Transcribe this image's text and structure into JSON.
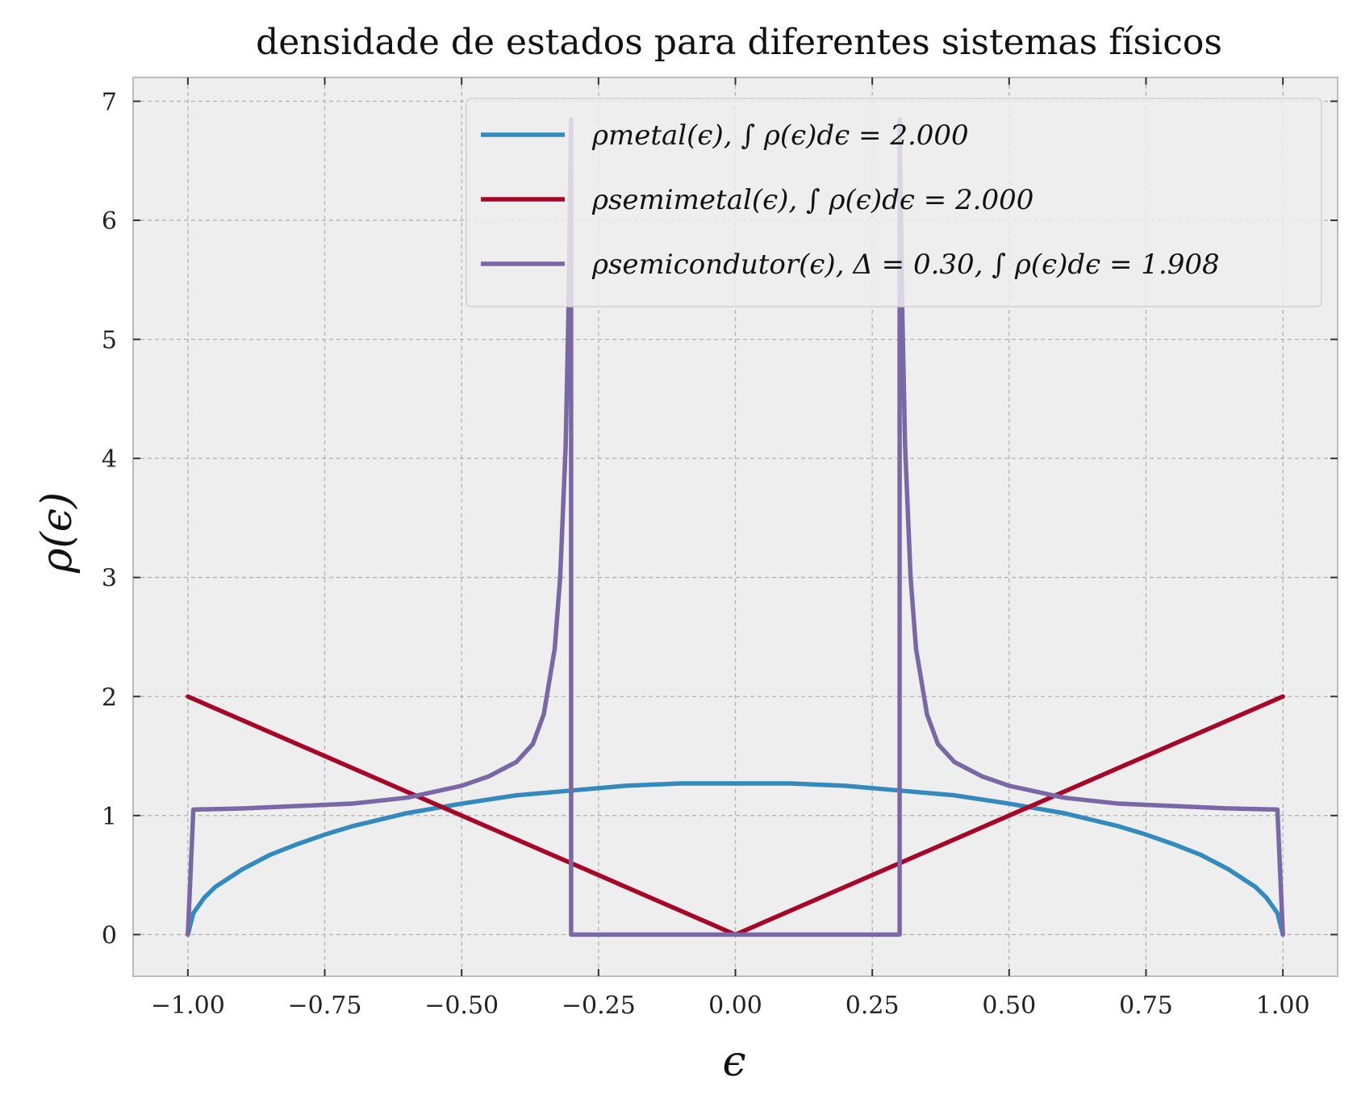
{
  "chart_data": {
    "type": "line",
    "title": "densidade de estados para diferentes sistemas físicos",
    "xlabel": "ϵ",
    "ylabel": "ρ(ϵ)",
    "xlim": [
      -1.1,
      1.1
    ],
    "ylim": [
      -0.35,
      7.2
    ],
    "x_ticks": [
      -1.0,
      -0.75,
      -0.5,
      -0.25,
      0.0,
      0.25,
      0.5,
      0.75,
      1.0
    ],
    "x_tick_labels": [
      "−1.00",
      "−0.75",
      "−0.50",
      "−0.25",
      "0.00",
      "0.25",
      "0.50",
      "0.75",
      "1.00"
    ],
    "y_ticks": [
      0,
      1,
      2,
      3,
      4,
      5,
      6,
      7
    ],
    "y_tick_labels": [
      "0",
      "1",
      "2",
      "3",
      "4",
      "5",
      "6",
      "7"
    ],
    "grid": true,
    "legend_position": "top-right",
    "background": "#eeeeee",
    "series": [
      {
        "name": "ρmetal(ϵ), ∫ ρ(ϵ)dϵ = 2.000",
        "color": "#348abd",
        "points": [
          [
            -1.0,
            0.0
          ],
          [
            -0.99,
            0.18
          ],
          [
            -0.97,
            0.31
          ],
          [
            -0.95,
            0.4
          ],
          [
            -0.9,
            0.55
          ],
          [
            -0.85,
            0.67
          ],
          [
            -0.8,
            0.76
          ],
          [
            -0.75,
            0.84
          ],
          [
            -0.7,
            0.91
          ],
          [
            -0.6,
            1.02
          ],
          [
            -0.5,
            1.1
          ],
          [
            -0.4,
            1.17
          ],
          [
            -0.3,
            1.21
          ],
          [
            -0.2,
            1.25
          ],
          [
            -0.1,
            1.27
          ],
          [
            0.0,
            1.27
          ],
          [
            0.1,
            1.27
          ],
          [
            0.2,
            1.25
          ],
          [
            0.3,
            1.21
          ],
          [
            0.4,
            1.17
          ],
          [
            0.5,
            1.1
          ],
          [
            0.6,
            1.02
          ],
          [
            0.7,
            0.91
          ],
          [
            0.75,
            0.84
          ],
          [
            0.8,
            0.76
          ],
          [
            0.85,
            0.67
          ],
          [
            0.9,
            0.55
          ],
          [
            0.95,
            0.4
          ],
          [
            0.97,
            0.31
          ],
          [
            0.99,
            0.18
          ],
          [
            1.0,
            0.0
          ]
        ]
      },
      {
        "name": "ρsemimetal(ϵ), ∫ ρ(ϵ)dϵ = 2.000",
        "color": "#a60628",
        "points": [
          [
            -1.0,
            2.0
          ],
          [
            0.0,
            0.0
          ],
          [
            1.0,
            2.0
          ]
        ]
      },
      {
        "name": "ρsemicondutor(ϵ), Δ = 0.30, ∫ ρ(ϵ)dϵ = 1.908",
        "color": "#7a68a6",
        "points": [
          [
            -1.0,
            0.0
          ],
          [
            -0.99,
            1.05
          ],
          [
            -0.9,
            1.06
          ],
          [
            -0.8,
            1.08
          ],
          [
            -0.7,
            1.1
          ],
          [
            -0.6,
            1.15
          ],
          [
            -0.5,
            1.25
          ],
          [
            -0.45,
            1.33
          ],
          [
            -0.4,
            1.45
          ],
          [
            -0.37,
            1.6
          ],
          [
            -0.35,
            1.85
          ],
          [
            -0.33,
            2.4
          ],
          [
            -0.32,
            3.0
          ],
          [
            -0.31,
            4.1
          ],
          [
            -0.305,
            5.2
          ],
          [
            -0.3,
            6.85
          ],
          [
            -0.3,
            0.0
          ],
          [
            0.3,
            0.0
          ],
          [
            0.3,
            6.85
          ],
          [
            0.305,
            5.2
          ],
          [
            0.31,
            4.1
          ],
          [
            0.32,
            3.0
          ],
          [
            0.33,
            2.4
          ],
          [
            0.35,
            1.85
          ],
          [
            0.37,
            1.6
          ],
          [
            0.4,
            1.45
          ],
          [
            0.45,
            1.33
          ],
          [
            0.5,
            1.25
          ],
          [
            0.6,
            1.15
          ],
          [
            0.7,
            1.1
          ],
          [
            0.8,
            1.08
          ],
          [
            0.9,
            1.06
          ],
          [
            0.99,
            1.05
          ],
          [
            1.0,
            0.0
          ]
        ]
      }
    ]
  }
}
